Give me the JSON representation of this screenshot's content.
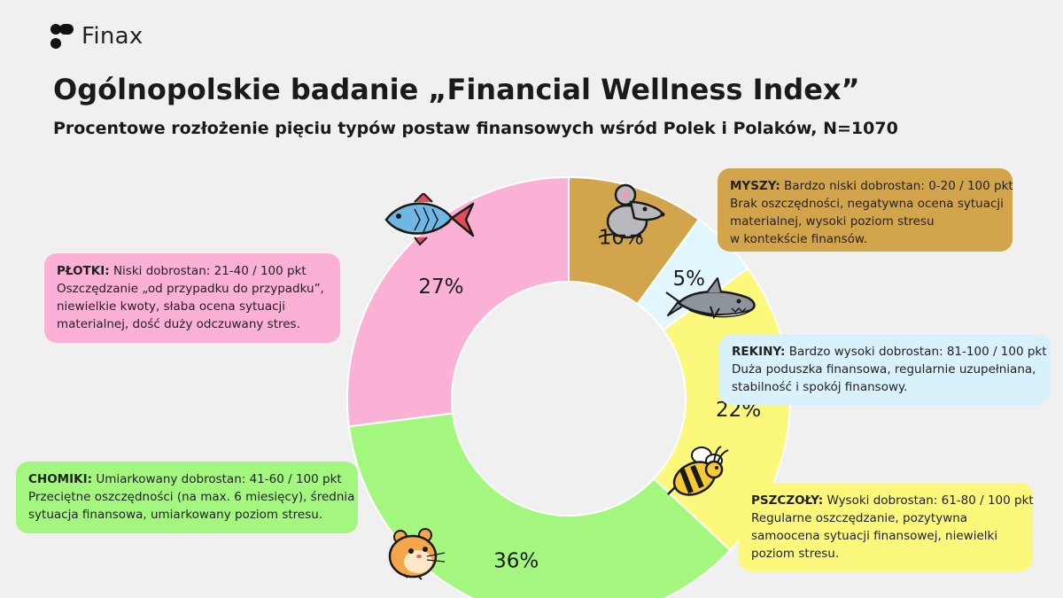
{
  "brand": {
    "name": "Finax"
  },
  "title": "Ogólnopolskie badanie „Financial Wellness Index”",
  "subtitle": "Procentowe rozłożenie pięciu typów postaw finansowych wśród Polek i Polaków, N=1070",
  "chart_data": {
    "type": "pie",
    "variant": "donut",
    "title": "Procentowe rozłożenie pięciu typów postaw finansowych wśród Polek i Polaków, N=1070",
    "slices": [
      {
        "key": "myszy",
        "value": 10,
        "label": "10%",
        "color": "#d2a54c"
      },
      {
        "key": "rekiny",
        "value": 5,
        "label": "5%",
        "color": "#e2f6fd"
      },
      {
        "key": "pszczoly",
        "value": 22,
        "label": "22%",
        "color": "#fbf87c"
      },
      {
        "key": "chomiki",
        "value": 36,
        "label": "36%",
        "color": "#a3f77f"
      },
      {
        "key": "plotki",
        "value": 27,
        "label": "27%",
        "color": "#fbb0d5"
      }
    ]
  },
  "legend": {
    "plotki": {
      "name": "PŁOTKI:",
      "lines": [
        "Niski dobrostan: 21-40 / 100 pkt",
        "Oszczędzanie „od przypadku do przypadku”,",
        "niewielkie kwoty,  słaba ocena sytuacji",
        "materialnej, dość duży odczuwany stres."
      ]
    },
    "myszy": {
      "name": "MYSZY:",
      "lines": [
        "Bardzo niski dobrostan: 0-20 / 100 pkt",
        "Brak oszczędności, negatywna ocena sytuacji",
        "materialnej, wysoki poziom stresu",
        "w kontekście finansów."
      ]
    },
    "rekiny": {
      "name": "REKINY:",
      "lines": [
        "Bardzo wysoki dobrostan: 81-100 / 100 pkt",
        "Duża poduszka finansowa, regularnie uzupełniana,",
        "stabilność  i spokój finansowy."
      ]
    },
    "chomiki": {
      "name": "CHOMIKI:",
      "lines": [
        "Umiarkowany dobrostan: 41-60 / 100 pkt",
        "Przeciętne oszczędności (na max. 6 miesięcy), średnia",
        "sytuacja finansowa, umiarkowany poziom stresu."
      ]
    },
    "pszczoly": {
      "name": "PSZCZOŁY:",
      "lines": [
        "Wysoki dobrostan: 61-80 / 100 pkt",
        "Regularne oszczędzanie, pozytywna",
        "samoocena sytuacji finansowej, niewielki",
        "poziom stresu."
      ]
    }
  },
  "icons": [
    "fish-icon",
    "mouse-icon",
    "shark-icon",
    "bee-icon",
    "hamster-icon",
    "finax-logo-icon"
  ]
}
